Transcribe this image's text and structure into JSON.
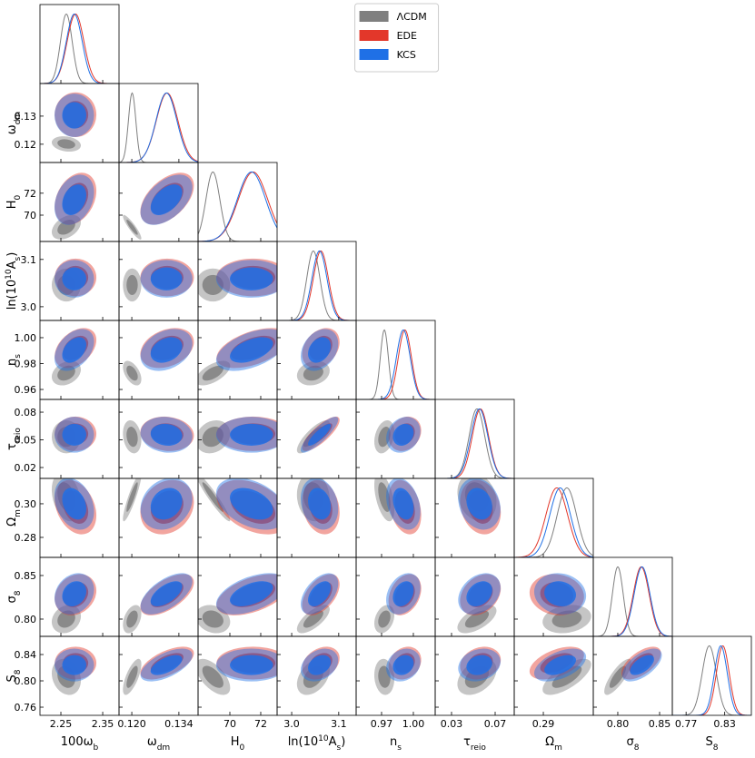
{
  "chart_data": {
    "type": "corner",
    "legend": "upper center",
    "parameters": [
      {
        "label": [
          [
            "100ω",
            "normal"
          ],
          [
            "b",
            "sub"
          ]
        ],
        "xlim": [
          2.2,
          2.389
        ],
        "xticks": [
          2.25,
          2.35
        ]
      },
      {
        "label": [
          [
            "ω",
            "normal"
          ],
          [
            "dm",
            "sub"
          ]
        ],
        "xlim": [
          0.1162,
          0.1397
        ],
        "xticks": [
          {
            "value": 0.12,
            "label": "0.120"
          },
          0.134
        ],
        "ylim": [
          0.1135,
          0.1416
        ],
        "yticks": [
          0.12,
          0.13
        ]
      },
      {
        "label": [
          [
            "H",
            "normal"
          ],
          [
            "0",
            "sub"
          ]
        ],
        "xlim": [
          67.94,
          73.06
        ],
        "xticks": [
          70,
          72
        ],
        "ylim": [
          67.6,
          74.8
        ],
        "yticks": [
          70,
          72
        ]
      },
      {
        "label": [
          [
            "ln(10",
            "normal"
          ],
          [
            "10",
            "sup"
          ],
          [
            "A",
            "normal"
          ],
          [
            "s",
            "sub"
          ],
          [
            ")",
            "normal"
          ]
        ],
        "xlim": [
          2.969,
          3.137
        ],
        "xticks": [
          {
            "value": 3,
            "label": "3.0"
          },
          3.1
        ],
        "ylim": [
          2.971,
          3.138
        ],
        "yticks": [
          {
            "value": 3,
            "label": "3.0"
          },
          3.1
        ]
      },
      {
        "label": [
          [
            "n",
            "normal"
          ],
          [
            "s",
            "sub"
          ]
        ],
        "xlim": [
          0.946,
          1.0206
        ],
        "xticks": [
          0.97,
          {
            "value": 1,
            "label": "1.00"
          }
        ],
        "ylim": [
          0.9523,
          1.0133
        ],
        "yticks": [
          0.96,
          0.98,
          {
            "value": 1,
            "label": "1.00"
          }
        ]
      },
      {
        "label": [
          [
            "τ",
            "normal"
          ],
          [
            "reio",
            "sub"
          ]
        ],
        "xlim": [
          0.015,
          0.0875
        ],
        "xticks": [
          0.03,
          0.07
        ],
        "ylim": [
          0.0082,
          0.0938
        ],
        "yticks": [
          0.02,
          0.05,
          0.08
        ]
      },
      {
        "label": [
          [
            "Ω",
            "normal"
          ],
          [
            "m",
            "sub"
          ]
        ],
        "xlim": [
          0.2727,
          0.3197
        ],
        "xticks": [
          0.29
        ],
        "ylim": [
          0.2681,
          0.3151
        ],
        "yticks": [
          0.28,
          {
            "value": 0.3,
            "label": "0.30"
          }
        ]
      },
      {
        "label": [
          [
            "σ",
            "normal"
          ],
          [
            "8",
            "sub"
          ]
        ],
        "xlim": [
          0.7707,
          0.8652
        ],
        "xticks": [
          {
            "value": 0.8,
            "label": "0.80"
          },
          0.85
        ],
        "ylim": [
          0.7802,
          0.8708
        ],
        "yticks": [
          {
            "value": 0.8,
            "label": "0.80"
          },
          0.85
        ]
      },
      {
        "label": [
          [
            "S",
            "normal"
          ],
          [
            "8",
            "sub"
          ]
        ],
        "xlim": [
          0.7486,
          0.8714
        ],
        "xticks": [
          0.77,
          0.83
        ],
        "ylim": [
          0.7476,
          0.8676
        ],
        "yticks": [
          0.76,
          {
            "value": 0.8,
            "label": "0.80"
          },
          0.84
        ]
      }
    ],
    "series": [
      {
        "name": "ΛCDM",
        "color": "#7f7f7f",
        "means": [
          2.263,
          0.1201,
          68.9,
          3.046,
          0.9726,
          0.0533,
          0.304,
          0.8,
          0.806
        ],
        "sigmas": [
          0.014,
          0.0011,
          0.45,
          0.014,
          0.0038,
          0.0072,
          0.0058,
          0.0065,
          0.011
        ],
        "correlations": [
          -0.2,
          0.4,
          -0.9,
          0,
          0,
          0,
          0.3,
          -0.5,
          0.6,
          0.2,
          0,
          -0.2,
          0.2,
          0.8,
          0.3,
          -0.3,
          0.9,
          -0.95,
          -0.1,
          -0.5,
          -0.2,
          0.2,
          0.4,
          -0.2,
          0.7,
          0.3,
          0.6,
          0.2,
          -0.2,
          0.7,
          -0.6,
          0.4,
          -0.1,
          0.4,
          0.7,
          0.8
        ]
      },
      {
        "name": "EDE",
        "color": "#e3372a",
        "means": [
          2.285,
          0.1305,
          71.5,
          3.062,
          0.992,
          0.0565,
          0.298,
          0.828,
          0.827
        ],
        "sigmas": [
          0.02,
          0.0032,
          0.95,
          0.016,
          0.0062,
          0.0075,
          0.0065,
          0.0095,
          0.01
        ],
        "correlations": [
          0,
          0.3,
          0.5,
          0,
          0,
          0,
          0.4,
          0.3,
          0.5,
          0.3,
          0,
          -0.1,
          0,
          0.8,
          0.2,
          -0.3,
          0.2,
          -0.4,
          -0.2,
          -0.3,
          -0.2,
          0.2,
          0.6,
          0.5,
          0.5,
          0.3,
          0.3,
          -0.1,
          0,
          0.6,
          0,
          0.3,
          0.2,
          0.2,
          0.5,
          0.6
        ]
      },
      {
        "name": "KCS",
        "color": "#1f70e6",
        "means": [
          2.282,
          0.1303,
          71.4,
          3.059,
          0.9905,
          0.0555,
          0.3,
          0.829,
          0.824
        ],
        "sigmas": [
          0.019,
          0.0031,
          0.92,
          0.016,
          0.0065,
          0.0078,
          0.0062,
          0.0095,
          0.01
        ],
        "correlations": [
          0,
          0.3,
          0.5,
          0,
          0,
          0,
          0.4,
          0.3,
          0.5,
          0.3,
          0,
          -0.1,
          0,
          0.85,
          0.2,
          -0.3,
          0.2,
          -0.4,
          -0.2,
          -0.3,
          -0.2,
          0.2,
          0.6,
          0.5,
          0.5,
          0.3,
          0.3,
          -0.1,
          0,
          0.6,
          0,
          0.3,
          0.2,
          0.2,
          0.5,
          0.6
        ]
      }
    ]
  }
}
